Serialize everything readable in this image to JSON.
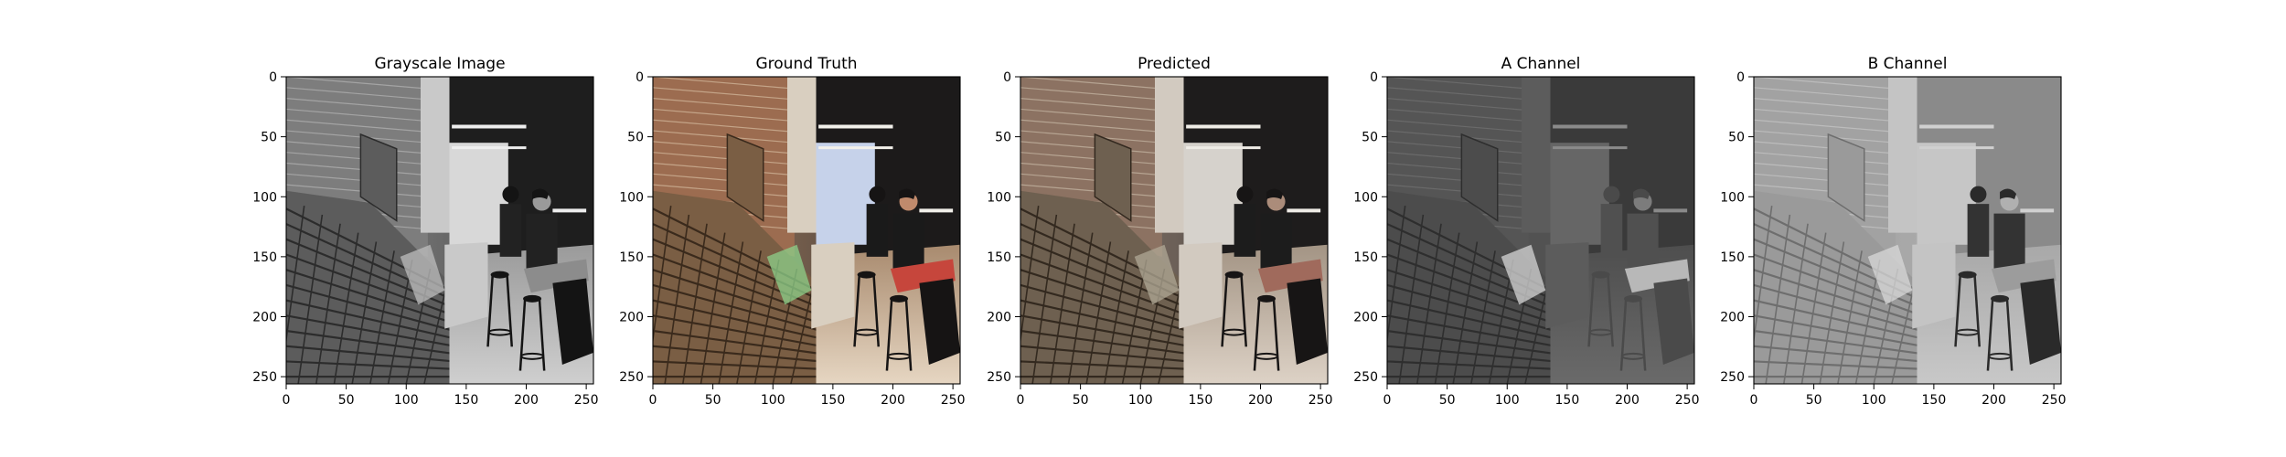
{
  "figure": {
    "background": "#ffffff"
  },
  "chart_data": [
    {
      "type": "image",
      "title": "Grayscale Image",
      "xlabel": "",
      "ylabel": "",
      "xlim": [
        0,
        256
      ],
      "ylim": [
        256,
        0
      ],
      "xticks": [
        0,
        50,
        100,
        150,
        200,
        250
      ],
      "yticks": [
        0,
        50,
        100,
        150,
        200,
        250
      ],
      "colormap": "grayscale"
    },
    {
      "type": "image",
      "title": "Ground Truth",
      "xlabel": "",
      "ylabel": "",
      "xlim": [
        0,
        256
      ],
      "ylim": [
        256,
        0
      ],
      "xticks": [
        0,
        50,
        100,
        150,
        200,
        250
      ],
      "yticks": [
        0,
        50,
        100,
        150,
        200,
        250
      ],
      "colormap": "color"
    },
    {
      "type": "image",
      "title": "Predicted",
      "xlabel": "",
      "ylabel": "",
      "xlim": [
        0,
        256
      ],
      "ylim": [
        256,
        0
      ],
      "xticks": [
        0,
        50,
        100,
        150,
        200,
        250
      ],
      "yticks": [
        0,
        50,
        100,
        150,
        200,
        250
      ],
      "colormap": "color"
    },
    {
      "type": "image",
      "title": "A Channel",
      "xlabel": "",
      "ylabel": "",
      "xlim": [
        0,
        256
      ],
      "ylim": [
        256,
        0
      ],
      "xticks": [
        0,
        50,
        100,
        150,
        200,
        250
      ],
      "yticks": [
        0,
        50,
        100,
        150,
        200,
        250
      ],
      "colormap": "grayscale"
    },
    {
      "type": "image",
      "title": "B Channel",
      "xlabel": "",
      "ylabel": "",
      "xlim": [
        0,
        256
      ],
      "ylim": [
        256,
        0
      ],
      "xticks": [
        0,
        50,
        100,
        150,
        200,
        250
      ],
      "yticks": [
        0,
        50,
        100,
        150,
        200,
        250
      ],
      "colormap": "grayscale"
    }
  ]
}
